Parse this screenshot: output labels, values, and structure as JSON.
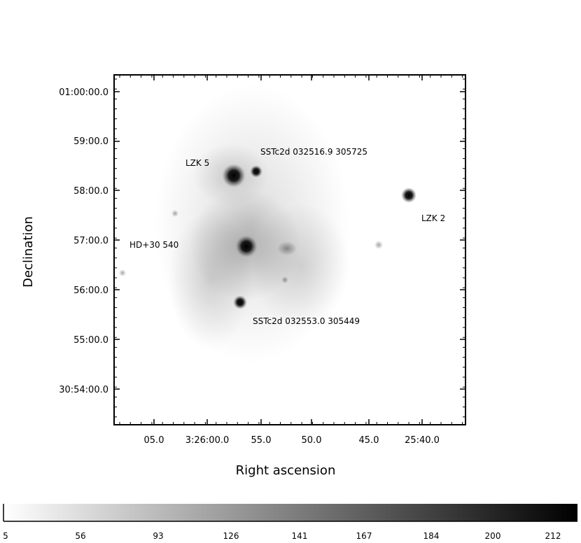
{
  "image": {
    "dec_tick_labels": [
      "01:00:00.0",
      "59:00.0",
      "58:00.0",
      "57:00.0",
      "56:00.0",
      "55:00.0",
      "30:54:00.0"
    ],
    "ra_tick_labels": [
      "05.0",
      "3:26:00.0",
      "55.0",
      "50.0",
      "45.0",
      "25:40.0"
    ],
    "ylabel": "Declination",
    "xlabel": "Right ascension",
    "sources": [
      {
        "label": "LZK 5"
      },
      {
        "label": "SSTc2d 032516.9 305725"
      },
      {
        "label": "LZK 2"
      },
      {
        "label": "HD+30 540"
      },
      {
        "label": "SSTc2d 032553.0 305449"
      }
    ],
    "colorbar_ticks": [
      "5",
      "56",
      "93",
      "126",
      "141",
      "167",
      "184",
      "200",
      "212"
    ],
    "colormap": "gray-reversed"
  }
}
